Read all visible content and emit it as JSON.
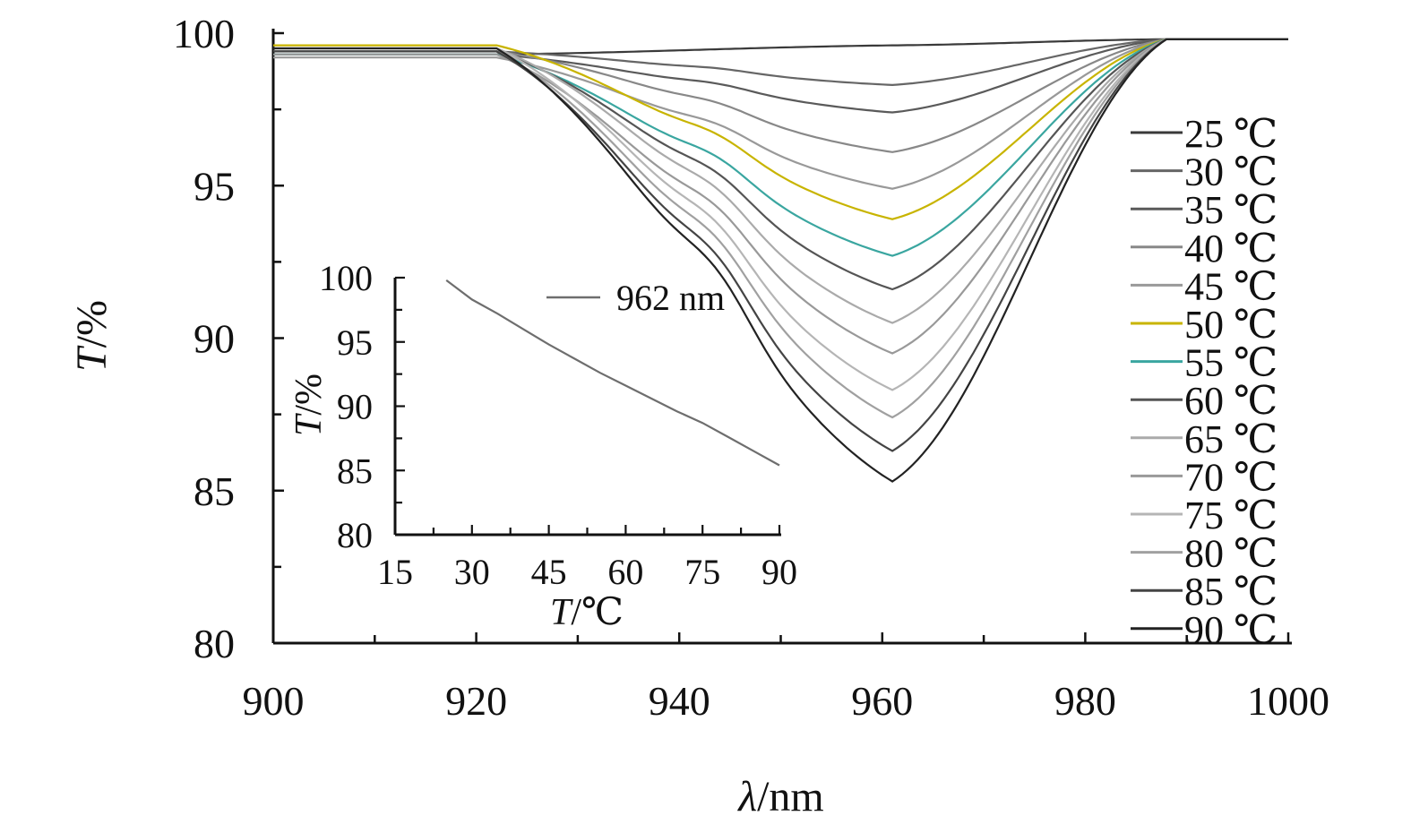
{
  "chart_data": [
    {
      "type": "line",
      "x_axis": {
        "label_italic": "λ",
        "label_rest": "/nm",
        "range": [
          900,
          1000
        ],
        "ticks": [
          900,
          920,
          940,
          960,
          980,
          1000
        ]
      },
      "y_axis": {
        "label_italic": "T",
        "label_rest": "/%",
        "range": [
          80,
          100
        ],
        "ticks": [
          80,
          85,
          90,
          95,
          100
        ]
      },
      "legend_position": "right",
      "shape_notes": "flat plateau from 900 to ~922 nm, descending to a minimum at ~961 nm, rising to ~98.8 nm then flat to 1000 nm",
      "series": [
        {
          "name": "25 ℃",
          "color": "#3a3a3a",
          "plateau": 99.3,
          "min_at_961": 99.6,
          "end": 99.8
        },
        {
          "name": "30 ℃",
          "color": "#666666",
          "plateau": 99.4,
          "min_at_961": 98.3,
          "end": 99.8
        },
        {
          "name": "35 ℃",
          "color": "#5a5a5a",
          "plateau": 99.3,
          "min_at_961": 97.4,
          "end": 99.8
        },
        {
          "name": "40 ℃",
          "color": "#888888",
          "plateau": 99.4,
          "min_at_961": 96.1,
          "end": 99.8
        },
        {
          "name": "45 ℃",
          "color": "#999999",
          "plateau": 99.2,
          "min_at_961": 94.9,
          "end": 99.8
        },
        {
          "name": "50 ℃",
          "color": "#c8b400",
          "plateau": 99.6,
          "min_at_961": 93.9,
          "end": 99.8
        },
        {
          "name": "55 ℃",
          "color": "#3aa6a0",
          "plateau": 99.3,
          "min_at_961": 92.7,
          "end": 99.8
        },
        {
          "name": "60 ℃",
          "color": "#555555",
          "plateau": 99.4,
          "min_at_961": 91.6,
          "end": 99.8
        },
        {
          "name": "65 ℃",
          "color": "#aaaaaa",
          "plateau": 99.5,
          "min_at_961": 90.5,
          "end": 99.8
        },
        {
          "name": "70 ℃",
          "color": "#999999",
          "plateau": 99.3,
          "min_at_961": 89.5,
          "end": 99.8
        },
        {
          "name": "75 ℃",
          "color": "#b5b5b5",
          "plateau": 99.5,
          "min_at_961": 88.3,
          "end": 99.8
        },
        {
          "name": "80 ℃",
          "color": "#a0a0a0",
          "plateau": 99.4,
          "min_at_961": 87.4,
          "end": 99.8
        },
        {
          "name": "85 ℃",
          "color": "#444444",
          "plateau": 99.4,
          "min_at_961": 86.3,
          "end": 99.8
        },
        {
          "name": "90 ℃",
          "color": "#222222",
          "plateau": 99.5,
          "min_at_961": 85.3,
          "end": 99.8
        }
      ]
    },
    {
      "type": "line",
      "x_axis": {
        "label_italic": "T",
        "label_rest": "/℃",
        "range": [
          15,
          90
        ],
        "ticks": [
          15,
          30,
          45,
          60,
          75,
          90
        ]
      },
      "y_axis": {
        "label_italic": "T",
        "label_rest": "/%",
        "range": [
          80,
          100
        ],
        "ticks": [
          80,
          85,
          90,
          95,
          100
        ]
      },
      "legend_position": "top-right",
      "series": [
        {
          "name": "962 nm",
          "color": "#6e6e6e",
          "x": [
            25,
            30,
            35,
            40,
            45,
            50,
            55,
            60,
            65,
            70,
            75,
            80,
            85,
            90
          ],
          "y": [
            99.8,
            98.3,
            97.2,
            96.0,
            94.8,
            93.7,
            92.6,
            91.6,
            90.6,
            89.6,
            88.7,
            87.6,
            86.5,
            85.4
          ]
        }
      ]
    }
  ]
}
